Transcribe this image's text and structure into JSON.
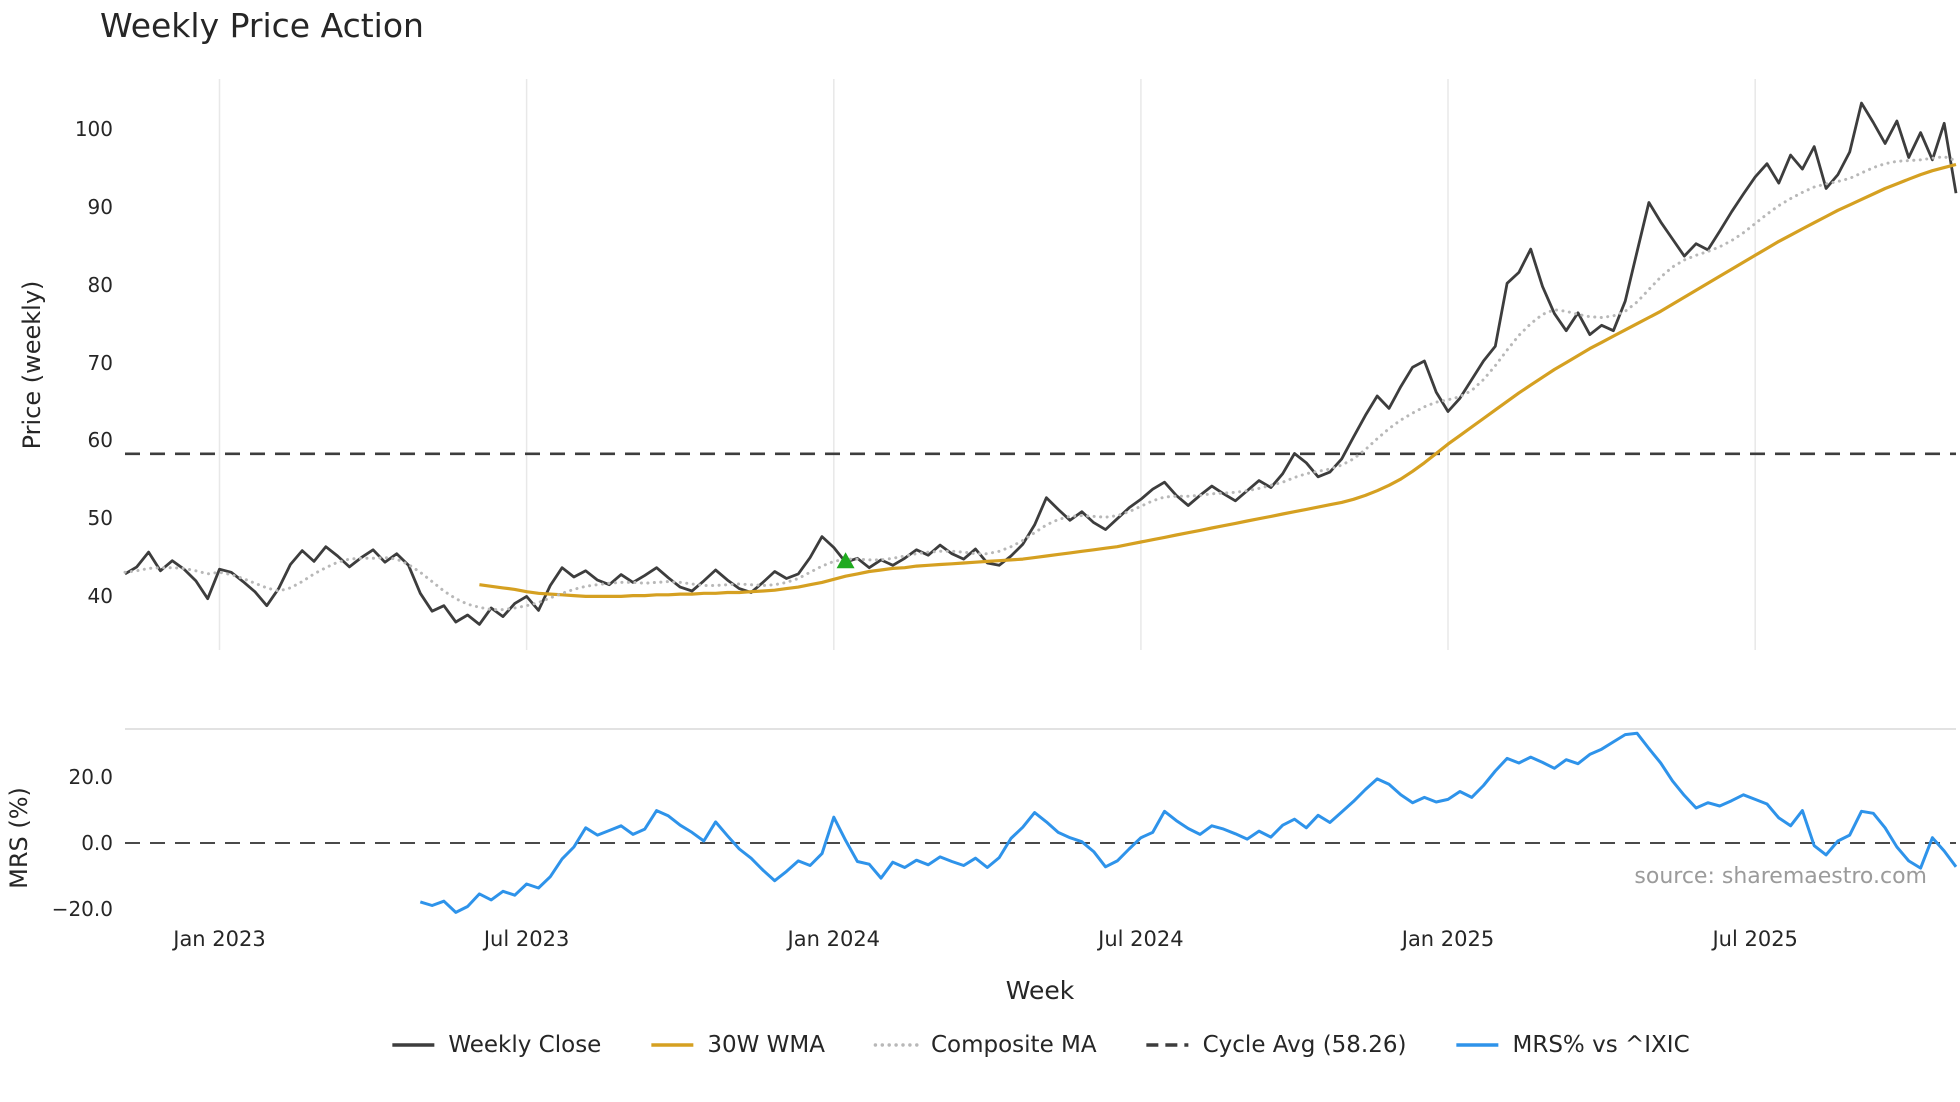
{
  "title": "Weekly Price Action",
  "watermark": "source: sharemaestro.com",
  "axes": {
    "price_axis_label": "Price (weekly)",
    "mrs_axis_label": "MRS (%)",
    "x_axis_label": "Week"
  },
  "legend": {
    "items": [
      {
        "label": "Weekly Close",
        "color": "#3d3d3d",
        "style": "solid"
      },
      {
        "label": "30W WMA",
        "color": "#d5a021",
        "style": "solid"
      },
      {
        "label": "Composite MA",
        "color": "#b8b8b8",
        "style": "dotted"
      },
      {
        "label": "Cycle Avg (58.26)",
        "color": "#3d3d3d",
        "style": "dashed"
      },
      {
        "label": "MRS% vs ^IXIC",
        "color": "#2e93ea",
        "style": "solid"
      }
    ]
  },
  "chart_data": {
    "type": "line",
    "title": "Weekly Price Action",
    "xlabel": "Week",
    "x_unit": "week_index",
    "x_range_weeks": [
      0,
      155
    ],
    "x_tick_weeks": [
      8,
      34,
      60,
      86,
      112,
      138
    ],
    "x_tick_labels": [
      "Jan 2023",
      "Jul 2023",
      "Jan 2024",
      "Jul 2024",
      "Jan 2025",
      "Jul 2025"
    ],
    "grid": "vertical-on-price-panel",
    "legend_position": "bottom-center",
    "panels": [
      {
        "name": "price",
        "ylabel": "Price (weekly)",
        "ylim": [
          33,
          106.5
        ],
        "yticks": [
          100,
          90,
          80,
          70,
          60,
          50,
          40
        ],
        "ytick_labels": [
          "100",
          "90",
          "80",
          "70",
          "60",
          "50",
          "40"
        ],
        "reference_lines": [
          {
            "label": "Cycle Avg (58.26)",
            "value": 58.26,
            "style": "dashed",
            "color": "#3d3d3d",
            "line_width": 2.6
          }
        ],
        "markers": [
          {
            "name": "buy-signal",
            "shape": "triangle-up",
            "color": "#1faa1f",
            "week": 61,
            "value": 44.3
          }
        ],
        "series": [
          {
            "name": "Weekly Close",
            "color": "#3d3d3d",
            "style": "solid",
            "line_width": 2.8,
            "start_week": 0,
            "values": [
              42.8,
              43.7,
              45.6,
              43.2,
              44.5,
              43.4,
              41.9,
              39.6,
              43.4,
              43.0,
              41.8,
              40.5,
              38.7,
              40.9,
              44.0,
              45.8,
              44.4,
              46.3,
              45.1,
              43.7,
              44.9,
              45.9,
              44.3,
              45.4,
              43.9,
              40.3,
              38.0,
              38.7,
              36.6,
              37.5,
              36.3,
              38.4,
              37.3,
              39.0,
              39.9,
              38.1,
              41.3,
              43.6,
              42.4,
              43.2,
              42.0,
              41.4,
              42.7,
              41.7,
              42.6,
              43.6,
              42.3,
              41.1,
              40.6,
              41.9,
              43.3,
              42.0,
              40.9,
              40.4,
              41.7,
              43.1,
              42.2,
              42.8,
              44.9,
              47.6,
              46.2,
              44.3,
              44.8,
              43.6,
              44.6,
              43.9,
              44.8,
              45.9,
              45.2,
              46.5,
              45.4,
              44.7,
              46.0,
              44.2,
              43.9,
              45.1,
              46.6,
              49.1,
              52.6,
              51.1,
              49.7,
              50.8,
              49.4,
              48.5,
              49.9,
              51.3,
              52.4,
              53.7,
              54.6,
              52.9,
              51.6,
              52.9,
              54.1,
              53.1,
              52.2,
              53.5,
              54.8,
              53.9,
              55.7,
              58.3,
              57.1,
              55.3,
              55.9,
              57.6,
              60.4,
              63.2,
              65.7,
              64.1,
              66.9,
              69.4,
              70.2,
              66.2,
              63.7,
              65.4,
              67.8,
              70.2,
              72.1,
              80.2,
              81.6,
              84.6,
              79.8,
              76.3,
              74.1,
              76.4,
              73.6,
              74.8,
              74.1,
              77.9,
              84.3,
              90.6,
              88.1,
              85.9,
              83.7,
              85.3,
              84.5,
              86.9,
              89.4,
              91.7,
              93.9,
              95.6,
              93.1,
              96.7,
              94.9,
              97.8,
              92.4,
              94.2,
              97.1,
              103.4,
              100.9,
              98.2,
              101.1,
              96.4,
              99.6,
              96.1,
              100.8,
              91.8
            ]
          },
          {
            "name": "30W WMA",
            "color": "#d5a021",
            "style": "solid",
            "line_width": 3.2,
            "start_week": 30,
            "values": [
              41.4,
              41.2,
              41.0,
              40.8,
              40.5,
              40.3,
              40.2,
              40.1,
              40.0,
              39.9,
              39.9,
              39.9,
              39.9,
              40.0,
              40.0,
              40.1,
              40.1,
              40.2,
              40.2,
              40.3,
              40.3,
              40.4,
              40.4,
              40.5,
              40.6,
              40.7,
              40.9,
              41.1,
              41.4,
              41.7,
              42.1,
              42.5,
              42.8,
              43.1,
              43.3,
              43.5,
              43.6,
              43.8,
              43.9,
              44.0,
              44.1,
              44.2,
              44.3,
              44.4,
              44.5,
              44.6,
              44.7,
              44.9,
              45.1,
              45.3,
              45.5,
              45.7,
              45.9,
              46.1,
              46.3,
              46.6,
              46.9,
              47.2,
              47.5,
              47.8,
              48.1,
              48.4,
              48.7,
              49.0,
              49.3,
              49.6,
              49.9,
              50.2,
              50.5,
              50.8,
              51.1,
              51.4,
              51.7,
              52.0,
              52.4,
              52.9,
              53.5,
              54.2,
              55.0,
              56.0,
              57.1,
              58.3,
              59.5,
              60.6,
              61.7,
              62.8,
              63.9,
              65.0,
              66.1,
              67.1,
              68.1,
              69.1,
              70.0,
              70.9,
              71.8,
              72.6,
              73.4,
              74.2,
              75.0,
              75.8,
              76.6,
              77.5,
              78.4,
              79.3,
              80.2,
              81.1,
              82.0,
              82.9,
              83.8,
              84.7,
              85.6,
              86.4,
              87.2,
              88.0,
              88.8,
              89.6,
              90.3,
              91.0,
              91.7,
              92.4,
              93.0,
              93.6,
              94.2,
              94.7,
              95.1,
              95.5
            ]
          },
          {
            "name": "Composite MA",
            "color": "#b8b8b8",
            "style": "dotted",
            "line_width": 3.0,
            "start_week": 0,
            "values": [
              43.0,
              43.2,
              43.5,
              43.6,
              43.6,
              43.5,
              43.2,
              42.8,
              43.0,
              42.7,
              42.2,
              41.6,
              41.0,
              40.6,
              41.0,
              41.8,
              42.8,
              43.6,
              44.3,
              44.7,
              44.8,
              44.8,
              44.9,
              44.7,
              44.0,
              43.0,
              41.8,
              40.6,
              39.6,
              38.9,
              38.5,
              38.2,
              38.2,
              38.4,
              38.7,
              39.1,
              39.7,
              40.3,
              40.8,
              41.2,
              41.4,
              41.6,
              41.7,
              41.7,
              41.6,
              41.7,
              41.8,
              41.7,
              41.5,
              41.3,
              41.3,
              41.4,
              41.5,
              41.4,
              41.3,
              41.4,
              41.7,
              42.2,
              43.0,
              43.8,
              44.4,
              44.7,
              44.7,
              44.6,
              44.6,
              44.8,
              45.1,
              45.4,
              45.6,
              45.7,
              45.7,
              45.6,
              45.4,
              45.4,
              45.7,
              46.3,
              47.1,
              48.1,
              49.1,
              49.8,
              50.2,
              50.3,
              50.2,
              50.1,
              50.3,
              50.8,
              51.5,
              52.2,
              52.7,
              52.8,
              52.8,
              52.9,
              53.1,
              53.2,
              53.3,
              53.5,
              53.8,
              54.2,
              54.6,
              55.2,
              55.7,
              56.0,
              56.3,
              56.8,
              57.6,
              58.8,
              60.2,
              61.5,
              62.6,
              63.5,
              64.3,
              64.9,
              65.2,
              65.6,
              66.4,
              67.8,
              69.6,
              71.6,
              73.5,
              75.0,
              76.2,
              76.8,
              76.6,
              76.2,
              75.9,
              75.8,
              76.0,
              76.6,
              77.8,
              79.4,
              81.0,
              82.3,
              83.2,
              83.8,
              84.3,
              84.9,
              85.7,
              86.7,
              87.9,
              89.1,
              90.2,
              91.1,
              91.9,
              92.6,
              93.0,
              93.3,
              93.7,
              94.4,
              95.1,
              95.6,
              95.9,
              96.0,
              96.1,
              96.3,
              96.5,
              96.0
            ]
          }
        ]
      },
      {
        "name": "mrs",
        "ylabel": "MRS (%)",
        "ylim": [
          -24.5,
          34.5
        ],
        "yticks": [
          20,
          0,
          -20
        ],
        "ytick_labels": [
          "20.0",
          "0.0",
          "−20.0"
        ],
        "reference_lines": [
          {
            "label": "zero-line",
            "value": 0,
            "style": "dashed",
            "color": "#4a4a4a",
            "line_width": 2.0
          }
        ],
        "series": [
          {
            "name": "MRS% vs ^IXIC",
            "color": "#2e93ea",
            "style": "solid",
            "line_width": 3.0,
            "start_week": 25,
            "values": [
              -17.8,
              -18.9,
              -17.6,
              -21.0,
              -19.2,
              -15.4,
              -17.2,
              -14.6,
              -15.8,
              -12.4,
              -13.6,
              -10.2,
              -4.8,
              -1.2,
              4.6,
              2.4,
              3.8,
              5.2,
              2.6,
              4.2,
              9.8,
              8.2,
              5.4,
              3.2,
              0.6,
              6.4,
              2.2,
              -1.8,
              -4.6,
              -8.2,
              -11.4,
              -8.6,
              -5.4,
              -6.8,
              -3.2,
              7.8,
              0.8,
              -5.6,
              -6.4,
              -10.6,
              -5.8,
              -7.4,
              -5.2,
              -6.6,
              -4.2,
              -5.6,
              -6.8,
              -4.6,
              -7.4,
              -4.4,
              1.4,
              4.8,
              9.2,
              6.4,
              3.2,
              1.6,
              0.4,
              -2.6,
              -7.2,
              -5.4,
              -1.8,
              1.6,
              3.2,
              9.6,
              6.8,
              4.4,
              2.6,
              5.2,
              4.2,
              2.8,
              1.2,
              3.6,
              1.8,
              5.4,
              7.2,
              4.6,
              8.4,
              6.2,
              9.4,
              12.6,
              16.2,
              19.4,
              17.8,
              14.6,
              12.2,
              13.8,
              12.4,
              13.2,
              15.6,
              13.8,
              17.4,
              21.8,
              25.6,
              24.2,
              26.0,
              24.4,
              22.6,
              25.2,
              24.0,
              26.8,
              28.4,
              30.6,
              32.8,
              33.2,
              28.6,
              24.2,
              18.8,
              14.4,
              10.6,
              12.2,
              11.2,
              12.8,
              14.6,
              13.2,
              11.8,
              7.6,
              5.2,
              9.8,
              -0.8,
              -3.6,
              0.6,
              2.4,
              9.6,
              9.0,
              4.6,
              -1.2,
              -5.4,
              -7.6,
              1.6,
              -2.4,
              -7.2
            ]
          }
        ]
      }
    ]
  }
}
